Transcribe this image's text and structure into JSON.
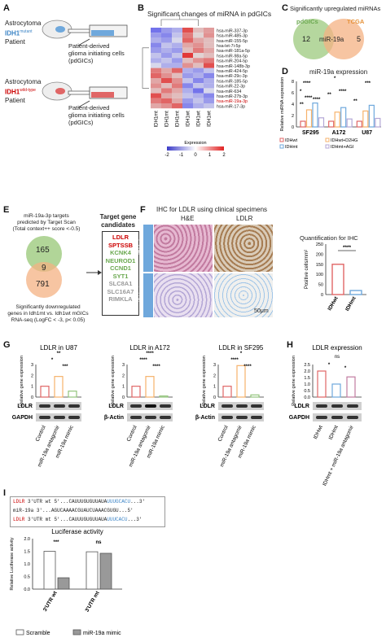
{
  "panelA": {
    "label": "A",
    "mutant": {
      "line1": "Astrocytoma",
      "gene": "IDH1",
      "sup": "mutant",
      "line3": "Patient"
    },
    "wild": {
      "line1": "Astrocytoma",
      "gene": "IDH1",
      "sup": "wild-type",
      "line3": "Patient"
    },
    "cells_top": [
      "Patient-derived",
      "glioma initiating cells",
      "(pdGICs)"
    ],
    "cells_bottom": [
      "Patient-derived",
      "glioma initiating cells",
      "(pdGICs)"
    ]
  },
  "panelB": {
    "label": "B",
    "title": "Significant changes of miRNA in pdGICs",
    "rows": [
      "hsa-miR-337-3p",
      "hsa-miR-485-3p",
      "hsa-miR-155-5p",
      "hsa-let-7i-5p",
      "hsa-miR-181a-5p",
      "hsa-miR-98a-5p",
      "hsa-miR-204-5p",
      "hsa-miR-148b-3p",
      "hsa-miR-424-5p",
      "hsa-miR-29c-3p",
      "hsa-miR-185-5p",
      "hsa-miR-22-3p",
      "hsa-miR-634",
      "hsa-miR-27b-3p",
      "hsa-miR-19a-3p",
      "hsa-miR-17-3p"
    ],
    "highlight_row": "hsa-miR-19a-3p",
    "columns": [
      "IDH1mt",
      "IDH1mt",
      "IDH1mt",
      "IDH1wt",
      "IDH1wt",
      "IDH1wt"
    ],
    "legend_title": "Expression",
    "legend_ticks": [
      "-2",
      "-1",
      "0",
      "1",
      "2"
    ],
    "matrix": [
      [
        -1.4,
        -1.0,
        -0.8,
        1.6,
        0.6,
        0.9
      ],
      [
        -1.0,
        -1.2,
        -0.6,
        1.2,
        0.4,
        1.0
      ],
      [
        -0.8,
        -1.0,
        -0.4,
        1.4,
        0.8,
        0.6
      ],
      [
        -1.2,
        -0.6,
        -0.8,
        0.8,
        1.0,
        0.6
      ],
      [
        -1.0,
        -0.8,
        -1.0,
        0.6,
        1.2,
        0.8
      ],
      [
        -0.6,
        -1.0,
        -0.6,
        1.8,
        0.4,
        0.6
      ],
      [
        -0.8,
        -0.6,
        -1.0,
        0.6,
        1.0,
        1.2
      ],
      [
        -0.4,
        -0.8,
        -0.8,
        1.0,
        0.6,
        1.6
      ],
      [
        1.2,
        0.8,
        1.4,
        -0.8,
        -1.0,
        -0.6
      ],
      [
        1.4,
        1.0,
        0.6,
        -1.0,
        -0.8,
        -1.2
      ],
      [
        0.8,
        1.6,
        1.0,
        -0.6,
        -1.2,
        -0.8
      ],
      [
        1.0,
        0.6,
        1.2,
        -1.2,
        -0.6,
        -0.8
      ],
      [
        0.6,
        1.2,
        0.8,
        -0.8,
        -1.4,
        -0.4
      ],
      [
        1.6,
        0.8,
        0.6,
        -0.6,
        -0.8,
        -1.2
      ],
      [
        1.2,
        1.4,
        0.8,
        -1.0,
        -0.6,
        -1.0
      ],
      [
        0.8,
        1.0,
        1.4,
        -1.2,
        -0.8,
        -0.6
      ]
    ]
  },
  "panelC": {
    "label": "C",
    "title": "Significantly upregulated miRNAs",
    "left_name": "pdGICs",
    "right_name": "TCGA",
    "left_count": "12",
    "center": "miR-19a",
    "right_count": "5",
    "colors": {
      "left": "#a8d08d",
      "right": "#f4b183"
    }
  },
  "panelD": {
    "label": "D",
    "title": "miR-19a expression",
    "ylabel": "Relative miRNA expression",
    "groups": [
      "SF295",
      "A172",
      "U87"
    ],
    "yticks": [
      "0",
      "2",
      "4",
      "6",
      "8"
    ],
    "legend": [
      "IDHwt",
      "IDHwt+D2HG",
      "IDHmt",
      "IDHmt+AGI"
    ],
    "colors": [
      "#e06666",
      "#f6b26b",
      "#6fa8dc",
      "#b4a7d6"
    ],
    "chart_data": {
      "type": "bar",
      "categories": [
        "SF295",
        "A172",
        "U87"
      ],
      "series": [
        {
          "name": "IDHwt",
          "values": [
            1.0,
            1.0,
            1.0
          ]
        },
        {
          "name": "IDHwt+D2HG",
          "values": [
            3.0,
            2.6,
            2.8
          ]
        },
        {
          "name": "IDHmt",
          "values": [
            4.2,
            3.4,
            3.8
          ]
        },
        {
          "name": "IDHmt+AGI",
          "values": [
            1.6,
            1.4,
            1.5
          ]
        }
      ],
      "ylim": [
        0,
        8
      ]
    },
    "sig": [
      "****",
      "*",
      "****",
      "**",
      "****",
      "*",
      "**",
      "****",
      "**",
      "***"
    ]
  },
  "panelE": {
    "label": "E",
    "top_text": [
      "miR-19a-3p targets",
      "predicted by Target Scan",
      "(Total context++ score <-0.5)"
    ],
    "top_count": "165",
    "center_count": "9",
    "bottom_count": "791",
    "bottom_text": [
      "Significantly downregulated",
      "genes in Idh1mt vs. Idh1wt mGICs",
      "RNA-seq (LogFC < -3, p< 0.05)"
    ],
    "box_title": [
      "Target gene",
      "candidates"
    ],
    "genes_red": [
      "LDLR",
      "SPTSSB"
    ],
    "genes_green": [
      "KCNK4",
      "NEUROD1",
      "CCND1",
      "SYT1"
    ],
    "genes_gray": [
      "SLC8A1",
      "SLC16A7",
      "RIMKLA"
    ]
  },
  "panelF": {
    "label": "F",
    "title": "IHC for LDLR using clinical specimens",
    "col_he": "H&E",
    "col_ldlr": "LDLR",
    "row_wt": "IDHwt",
    "row_mt": "IDHmt",
    "scale": "50μm",
    "quant_title": "Quantification for IHC",
    "ylabel": "Positive cells/mm²",
    "yticks": [
      "0",
      "50",
      "100",
      "150",
      "200",
      "250"
    ],
    "sig": "****",
    "chart_data": {
      "type": "bar",
      "categories": [
        "IDHwt",
        "IDHmt"
      ],
      "values": [
        150,
        20
      ],
      "ylim": [
        0,
        250
      ]
    },
    "xlabels": [
      "IDHwt",
      "IDHmt"
    ]
  },
  "panelG": {
    "label": "G",
    "charts": [
      {
        "title": "LDLR in U87",
        "yticks": [
          "0",
          "1",
          "2",
          "3"
        ],
        "ymax": 3,
        "values": [
          1.0,
          1.9,
          0.55
        ],
        "sig": [
          "*",
          "***",
          "**"
        ],
        "blot": [
          "LDLR",
          "GAPDH"
        ]
      },
      {
        "title": "LDLR in A172",
        "yticks": [
          "0",
          "1",
          "2",
          "3"
        ],
        "ymax": 3,
        "values": [
          1.0,
          1.9,
          0.1
        ],
        "sig": [
          "****",
          "****",
          "****"
        ],
        "blot": [
          "LDLR",
          "β-Actin"
        ]
      },
      {
        "title": "LDLR in SF295",
        "yticks": [
          "0",
          "1",
          "2",
          "3"
        ],
        "ymax": 3,
        "values": [
          1.0,
          2.9,
          0.2
        ],
        "sig": [
          "****",
          "****",
          "*"
        ],
        "blot": [
          "LDLR",
          "β-Actin"
        ]
      }
    ],
    "ylabel": "Relative gene expression",
    "xlabels": [
      "Control",
      "miR-19a antagomir",
      "miR-19a mimic"
    ],
    "colors": [
      "#e06666",
      "#f6b26b",
      "#93c47d"
    ]
  },
  "panelH": {
    "label": "H",
    "title": "LDLR expression",
    "ylabel": "Relative gene expression",
    "yticks": [
      "0.0",
      "0.5",
      "1.0",
      "1.5",
      "2.0",
      "2.5"
    ],
    "values": [
      2.0,
      1.0,
      1.55
    ],
    "ymax": 2.5,
    "sig": [
      "ns",
      "*",
      "*"
    ],
    "xlabels": [
      "IDHwt",
      "IDHmt",
      "IDHmt + miR-19a antagomir"
    ],
    "blot": [
      "LDLR",
      "GAPDH"
    ],
    "colors": [
      "#e06666",
      "#6fa8dc",
      "#c27ba0"
    ]
  },
  "panelI": {
    "label": "I",
    "seq_rows": [
      {
        "name": "LDLR",
        "suffix": "3'UTR wt",
        "seq": "5'...CAUUUGUGUUAUA",
        "tail": "UUUGCACU",
        "end": "...3'"
      },
      {
        "name": "",
        "suffix": "miR-19a",
        "seq": "3'...AGUCAAAACGUAUCU",
        "tail": "AAACGUGU",
        "end": "...5'"
      },
      {
        "name": "LDLR",
        "suffix": "3'UTR mt",
        "seq": "5'...CAUUUGUGUUAUA",
        "tail": "UUUCACU",
        "end": "...3'"
      }
    ],
    "title": "Luciferase activity",
    "ylabel": "Relative Luciferase activity",
    "yticks": [
      "0.0",
      "0.5",
      "1.0",
      "1.5",
      "2.0"
    ],
    "ymax": 2.0,
    "groups": [
      "3'UTR wt",
      "3'UTR mt"
    ],
    "values": [
      [
        1.5,
        0.45
      ],
      [
        1.48,
        1.42
      ]
    ],
    "sig": [
      "***",
      "ns"
    ],
    "legend": [
      "Scramble",
      "miR-19a mimic"
    ]
  }
}
